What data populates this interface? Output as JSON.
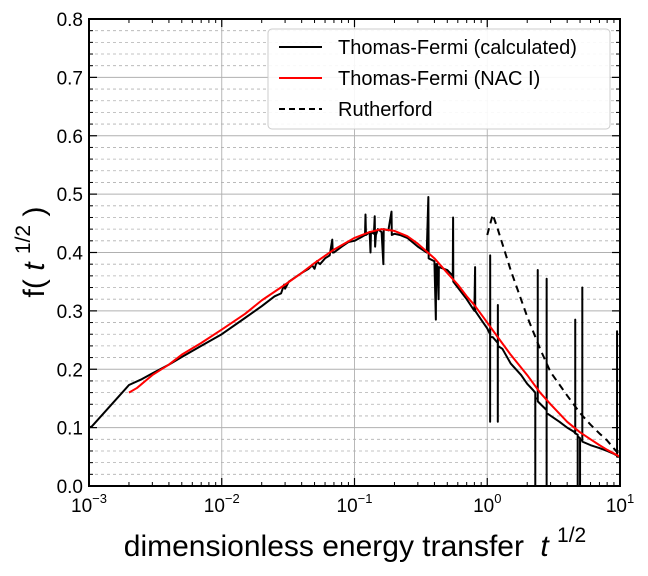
{
  "chart_data": {
    "type": "line",
    "xlabel": "dimensionless energy transfer",
    "xlabel_symbol": "t",
    "xlabel_sup": "1/2",
    "ylabel": "f(",
    "ylabel_symbol": "t",
    "ylabel_sup": "1/2",
    "ylabel_close": ")",
    "xscale": "log",
    "xlim": [
      0.001,
      10
    ],
    "ylim": [
      0.0,
      0.8
    ],
    "x_ticks": [
      {
        "base": "10",
        "exp": "−3"
      },
      {
        "base": "10",
        "exp": "−2"
      },
      {
        "base": "10",
        "exp": "−1"
      },
      {
        "base": "10",
        "exp": "0"
      },
      {
        "base": "10",
        "exp": "1"
      }
    ],
    "y_ticks": [
      "0.0",
      "0.1",
      "0.2",
      "0.3",
      "0.4",
      "0.5",
      "0.6",
      "0.7",
      "0.8"
    ],
    "grid": true,
    "legend_position": "top-right",
    "series": [
      {
        "name": "Thomas-Fermi (calculated)",
        "color": "#000000",
        "dash": "solid",
        "points": [
          [
            0.001,
            0.1
          ],
          [
            0.00105,
            0.102
          ],
          [
            0.002,
            0.173
          ],
          [
            0.0025,
            0.183
          ],
          [
            0.003,
            0.193
          ],
          [
            0.004,
            0.208
          ],
          [
            0.005,
            0.221
          ],
          [
            0.007,
            0.24
          ],
          [
            0.01,
            0.26
          ],
          [
            0.015,
            0.288
          ],
          [
            0.02,
            0.308
          ],
          [
            0.025,
            0.325
          ],
          [
            0.028,
            0.33
          ],
          [
            0.0295,
            0.345
          ],
          [
            0.03,
            0.338
          ],
          [
            0.032,
            0.35
          ],
          [
            0.04,
            0.365
          ],
          [
            0.045,
            0.372
          ],
          [
            0.048,
            0.378
          ],
          [
            0.05,
            0.372
          ],
          [
            0.052,
            0.385
          ],
          [
            0.055,
            0.38
          ],
          [
            0.06,
            0.39
          ],
          [
            0.065,
            0.395
          ],
          [
            0.068,
            0.422
          ],
          [
            0.0685,
            0.4
          ],
          [
            0.07,
            0.4
          ],
          [
            0.08,
            0.41
          ],
          [
            0.09,
            0.418
          ],
          [
            0.1,
            0.42
          ],
          [
            0.11,
            0.425
          ],
          [
            0.12,
            0.43
          ],
          [
            0.121,
            0.465
          ],
          [
            0.122,
            0.43
          ],
          [
            0.13,
            0.435
          ],
          [
            0.132,
            0.4
          ],
          [
            0.133,
            0.435
          ],
          [
            0.14,
            0.432
          ],
          [
            0.142,
            0.462
          ],
          [
            0.143,
            0.41
          ],
          [
            0.145,
            0.43
          ],
          [
            0.15,
            0.44
          ],
          [
            0.16,
            0.435
          ],
          [
            0.165,
            0.38
          ],
          [
            0.166,
            0.44
          ],
          [
            0.18,
            0.438
          ],
          [
            0.19,
            0.47
          ],
          [
            0.191,
            0.43
          ],
          [
            0.2,
            0.432
          ],
          [
            0.22,
            0.43
          ],
          [
            0.25,
            0.425
          ],
          [
            0.3,
            0.41
          ],
          [
            0.35,
            0.4
          ],
          [
            0.36,
            0.495
          ],
          [
            0.362,
            0.39
          ],
          [
            0.4,
            0.385
          ],
          [
            0.41,
            0.285
          ],
          [
            0.412,
            0.38
          ],
          [
            0.42,
            0.38
          ],
          [
            0.43,
            0.32
          ],
          [
            0.432,
            0.375
          ],
          [
            0.5,
            0.37
          ],
          [
            0.55,
            0.36
          ],
          [
            0.553,
            0.46
          ],
          [
            0.555,
            0.35
          ],
          [
            0.6,
            0.34
          ],
          [
            0.7,
            0.32
          ],
          [
            0.8,
            0.3
          ],
          [
            0.81,
            0.375
          ],
          [
            0.812,
            0.3
          ],
          [
            0.9,
            0.285
          ],
          [
            1.0,
            0.27
          ],
          [
            1.05,
            0.26
          ],
          [
            1.051,
            0.11
          ],
          [
            1.052,
            0.395
          ],
          [
            1.053,
            0.255
          ],
          [
            1.1,
            0.255
          ],
          [
            1.2,
            0.245
          ],
          [
            1.201,
            0.11
          ],
          [
            1.202,
            0.31
          ],
          [
            1.203,
            0.24
          ],
          [
            1.3,
            0.235
          ],
          [
            1.5,
            0.21
          ],
          [
            1.8,
            0.19
          ],
          [
            2.0,
            0.175
          ],
          [
            2.2,
            0.165
          ],
          [
            2.3,
            0.16
          ],
          [
            2.301,
            0.0
          ],
          [
            2.302,
            0.15
          ],
          [
            2.4,
            0.15
          ],
          [
            2.401,
            0.37
          ],
          [
            2.402,
            0.145
          ],
          [
            2.8,
            0.13
          ],
          [
            2.801,
            0.0
          ],
          [
            2.802,
            0.355
          ],
          [
            2.803,
            0.125
          ],
          [
            3.5,
            0.11
          ],
          [
            4.0,
            0.1
          ],
          [
            4.5,
            0.093
          ],
          [
            4.6,
            0.09
          ],
          [
            4.601,
            0.285
          ],
          [
            4.602,
            0.09
          ],
          [
            4.8,
            0.088
          ],
          [
            4.801,
            0.0
          ],
          [
            4.802,
            0.085
          ],
          [
            5.0,
            0.082
          ],
          [
            5.001,
            0.0
          ],
          [
            5.002,
            0.08
          ],
          [
            5.2,
            0.078
          ],
          [
            5.201,
            0.34
          ],
          [
            5.202,
            0.076
          ],
          [
            6.0,
            0.07
          ],
          [
            7.0,
            0.065
          ],
          [
            8.0,
            0.06
          ],
          [
            9.0,
            0.055
          ],
          [
            9.5,
            0.052
          ],
          [
            9.501,
            0.265
          ],
          [
            9.502,
            0.05
          ],
          [
            10.0,
            0.05
          ]
        ]
      },
      {
        "name": "Thomas-Fermi (NAC I)",
        "color": "#ff0000",
        "dash": "solid",
        "points": [
          [
            0.002,
            0.16
          ],
          [
            0.0023,
            0.168
          ],
          [
            0.003,
            0.19
          ],
          [
            0.004,
            0.208
          ],
          [
            0.005,
            0.225
          ],
          [
            0.007,
            0.245
          ],
          [
            0.01,
            0.268
          ],
          [
            0.015,
            0.295
          ],
          [
            0.02,
            0.318
          ],
          [
            0.03,
            0.345
          ],
          [
            0.04,
            0.365
          ],
          [
            0.05,
            0.382
          ],
          [
            0.07,
            0.405
          ],
          [
            0.1,
            0.425
          ],
          [
            0.13,
            0.435
          ],
          [
            0.16,
            0.44
          ],
          [
            0.2,
            0.437
          ],
          [
            0.25,
            0.428
          ],
          [
            0.3,
            0.415
          ],
          [
            0.4,
            0.39
          ],
          [
            0.5,
            0.365
          ],
          [
            0.6,
            0.345
          ],
          [
            0.7,
            0.325
          ],
          [
            0.8,
            0.31
          ],
          [
            1.0,
            0.28
          ],
          [
            1.2,
            0.255
          ],
          [
            1.5,
            0.225
          ],
          [
            2.0,
            0.19
          ],
          [
            2.5,
            0.16
          ],
          [
            3.0,
            0.14
          ],
          [
            4.0,
            0.11
          ],
          [
            5.0,
            0.092
          ],
          [
            6.0,
            0.08
          ],
          [
            7.0,
            0.07
          ],
          [
            8.0,
            0.062
          ],
          [
            10.0,
            0.05
          ]
        ]
      },
      {
        "name": "Rutherford",
        "color": "#000000",
        "dash": "dashed",
        "points": [
          [
            1.0,
            0.43
          ],
          [
            1.1,
            0.465
          ],
          [
            1.2,
            0.44
          ],
          [
            1.5,
            0.37
          ],
          [
            2.0,
            0.29
          ],
          [
            2.5,
            0.235
          ],
          [
            3.0,
            0.195
          ],
          [
            4.0,
            0.155
          ],
          [
            5.0,
            0.125
          ],
          [
            6.0,
            0.105
          ],
          [
            7.0,
            0.09
          ],
          [
            8.0,
            0.078
          ],
          [
            10.0,
            0.052
          ]
        ]
      }
    ]
  }
}
